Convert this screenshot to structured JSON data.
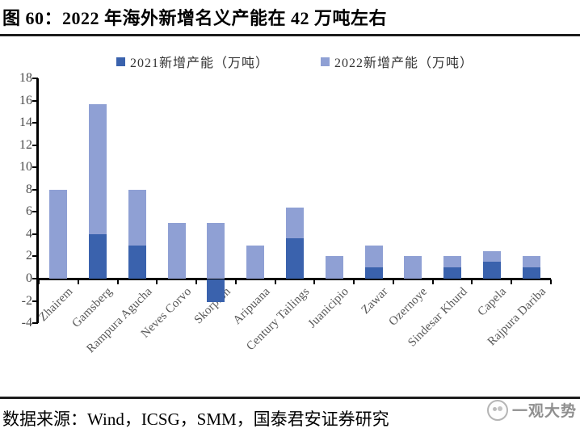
{
  "figure": {
    "title": "图 60：2022 年海外新增名义产能在 42 万吨左右",
    "source": "数据来源：Wind，ICSG，SMM，国泰君安证券研究",
    "watermark": "一观大势"
  },
  "chart_data": {
    "type": "bar",
    "subtype": "overlay",
    "title": "2022 年海外新增名义产能在 42 万吨左右",
    "categories": [
      "Zhairem",
      "Gamsberg",
      "Rampura Agucha",
      "Neves Corvo",
      "Skorpion",
      "Aripuana",
      "Century Tailings",
      "Juanicipio",
      "Zawar",
      "Ozernoye",
      "Sindesar Khurd",
      "Capela",
      "Rajpura Dariba"
    ],
    "series": [
      {
        "name": "2021新增产能（万吨）",
        "color": "#3A62AD",
        "values": [
          0,
          4,
          3,
          0,
          -2,
          0,
          3.6,
          0,
          1,
          0,
          1,
          1.5,
          1
        ]
      },
      {
        "name": "2022新增产能（万吨）",
        "color": "#8FA0D4",
        "values": [
          8,
          15.7,
          8,
          5,
          5,
          3,
          6.4,
          2,
          3,
          2,
          2,
          2.5,
          2
        ]
      }
    ],
    "xlabel": "",
    "ylabel": "",
    "ylim": [
      -4,
      18
    ],
    "ytick_step": 2,
    "ytick_labels": [
      "18",
      "16",
      "14",
      "12",
      "10",
      "8",
      "6",
      "4",
      "2",
      "0",
      "-2",
      "-4"
    ],
    "legend_position": "top-center",
    "grid": false,
    "xlabel_rotation": -45,
    "axis_color": "#000000",
    "tick_label_color": "#4a4a4a"
  }
}
